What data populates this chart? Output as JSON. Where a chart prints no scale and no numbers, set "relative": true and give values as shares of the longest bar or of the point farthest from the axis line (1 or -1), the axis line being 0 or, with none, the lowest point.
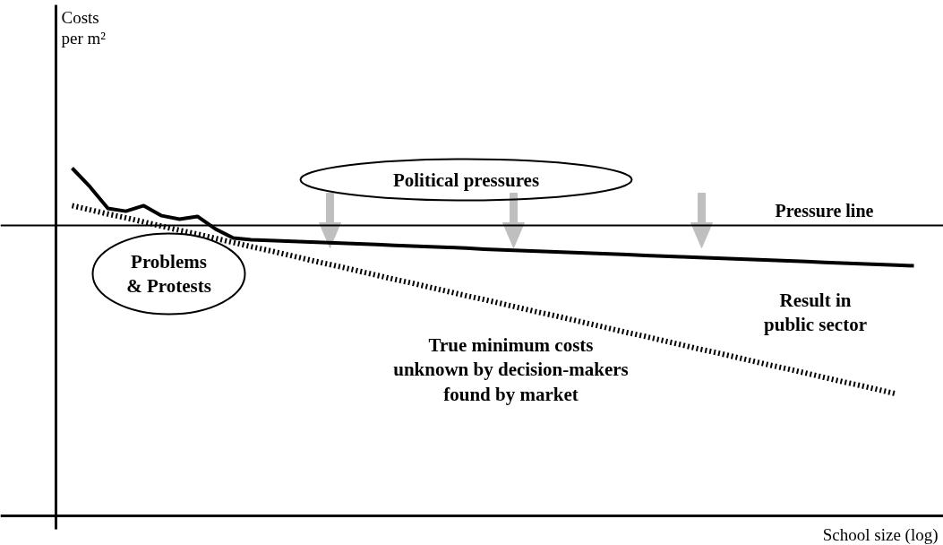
{
  "chart_data": {
    "type": "line",
    "relative": true,
    "xlabel": "School size (log)",
    "categories": [
      null,
      null,
      null,
      null,
      null,
      null,
      null,
      null,
      null,
      null,
      null,
      null,
      null,
      null,
      null,
      null,
      null,
      null,
      null,
      null,
      null,
      null,
      null,
      null,
      null,
      null,
      null,
      null,
      null,
      null,
      null,
      null,
      null,
      null,
      null,
      null,
      null,
      null,
      null,
      null,
      null,
      null,
      null,
      null,
      null,
      null,
      null,
      null
    ],
    "series": [
      {
        "name": "Result in\npublic sector",
        "color": "#000000",
        "line_style": "solid",
        "values": [
          1.0,
          0.946,
          0.884,
          0.876,
          0.892,
          0.863,
          0.853,
          0.861,
          0.825,
          0.799,
          0.794,
          0.792,
          0.79,
          0.788,
          0.786,
          0.784,
          0.782,
          0.78,
          0.778,
          0.776,
          0.774,
          0.772,
          0.77,
          0.767,
          0.765,
          0.763,
          0.761,
          0.759,
          0.757,
          0.755,
          0.753,
          0.751,
          0.749,
          0.747,
          0.745,
          0.743,
          0.741,
          0.739,
          0.737,
          0.735,
          0.733,
          0.731,
          0.729,
          0.727,
          0.725,
          0.723,
          0.721,
          0.719
        ]
      },
      {
        "name": "True minimum costs\nunknown by decision-makers\nfound by market",
        "color": "#000000",
        "line_style": "dotted",
        "values": [
          0.892,
          0.88,
          0.868,
          0.857,
          0.845,
          0.833,
          0.821,
          0.81,
          0.798,
          0.786,
          0.774,
          0.763,
          0.751,
          0.739,
          0.727,
          0.716,
          0.704,
          0.692,
          0.68,
          0.669,
          0.657,
          0.645,
          0.633,
          0.622,
          0.61,
          0.598,
          0.586,
          0.575,
          0.563,
          0.551,
          0.539,
          0.527,
          0.516,
          0.504,
          0.492,
          0.48,
          0.469,
          0.457,
          0.445,
          0.433,
          0.422,
          0.41,
          0.398,
          0.386,
          0.375,
          0.363,
          0.351,
          null
        ]
      }
    ],
    "ref_lines": [
      {
        "axis": "y",
        "value": 0.835,
        "label": "Pressure line",
        "color": "#000000"
      }
    ],
    "annotations": [
      "Political pressures",
      "Problems\n& Protests",
      "Costs\nper m²"
    ]
  }
}
